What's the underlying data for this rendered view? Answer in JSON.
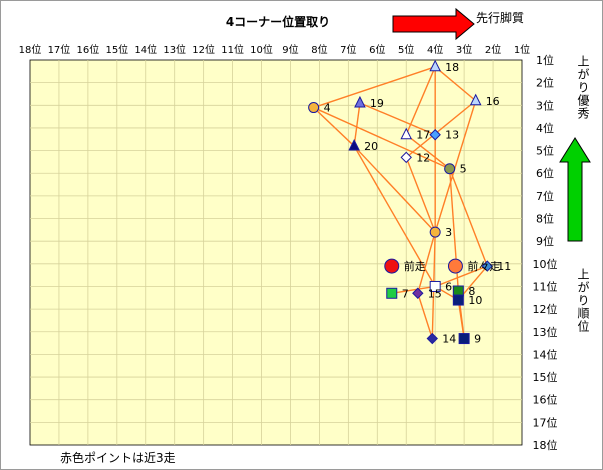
{
  "chart_data": {
    "type": "scatter",
    "title": "4コーナー位置取り",
    "x_tick_labels": [
      "18位",
      "17位",
      "16位",
      "15位",
      "14位",
      "13位",
      "12位",
      "11位",
      "10位",
      "9位",
      "8位",
      "7位",
      "6位",
      "5位",
      "4位",
      "3位",
      "2位",
      "1位"
    ],
    "y_tick_labels": [
      "1位",
      "2位",
      "3位",
      "4位",
      "5位",
      "6位",
      "7位",
      "8位",
      "9位",
      "10位",
      "11位",
      "12位",
      "13位",
      "14位",
      "15位",
      "16位",
      "17位",
      "18位"
    ],
    "xlim": [
      18,
      1
    ],
    "ylim": [
      1,
      18
    ],
    "grid": true,
    "annotations": {
      "front_runner": "先行脚質",
      "closing_speed_rank": "上がり順位",
      "closing_speed_good": "上がり優秀",
      "note": "赤色ポイントは近3走"
    },
    "colors": {
      "plot_bg": "#ffffc8",
      "grid": "#d6d29a",
      "line": "#ff7f27",
      "red_arrow": "#ff0000",
      "green_arrow": "#00d000"
    },
    "horses": [
      {
        "label": "18",
        "marker": "triangle",
        "color": "#bcd6ff",
        "x": 4.0,
        "y": 1.3
      },
      {
        "label": "16",
        "marker": "triangle",
        "color": "#bcd6ff",
        "x": 2.6,
        "y": 2.8
      },
      {
        "label": "19",
        "marker": "triangle",
        "color": "#7070e0",
        "x": 6.6,
        "y": 2.9
      },
      {
        "label": "4",
        "marker": "circle",
        "color": "#f5b43c",
        "x": 8.2,
        "y": 3.1
      },
      {
        "label": "17",
        "marker": "triangle",
        "color": "#ffffff",
        "x": 5.0,
        "y": 4.3
      },
      {
        "label": "13",
        "marker": "diamond",
        "color": "#4aa0ff",
        "x": 4.0,
        "y": 4.3
      },
      {
        "label": "20",
        "marker": "triangle",
        "color": "#0a0a80",
        "x": 6.8,
        "y": 4.8
      },
      {
        "label": "12",
        "marker": "diamond",
        "color": "#ffffff",
        "x": 5.0,
        "y": 5.3
      },
      {
        "label": "5",
        "marker": "circle",
        "color": "#8a9a50",
        "x": 3.5,
        "y": 5.8
      },
      {
        "label": "3",
        "marker": "circle",
        "color": "#f5b43c",
        "x": 4.0,
        "y": 8.6
      },
      {
        "label": "11",
        "marker": "diamond",
        "color": "#3a8ad0",
        "x": 2.2,
        "y": 10.1
      },
      {
        "label": "6",
        "marker": "square",
        "color": "#ffffff",
        "x": 4.0,
        "y": 11.0
      },
      {
        "label": "8",
        "marker": "square",
        "color": "#1a8a1a",
        "x": 3.2,
        "y": 11.2
      },
      {
        "label": "7",
        "marker": "square",
        "color": "#22cc44",
        "x": 5.5,
        "y": 11.3
      },
      {
        "label": "15",
        "marker": "diamond",
        "color": "#7030a0",
        "x": 4.6,
        "y": 11.3
      },
      {
        "label": "10",
        "marker": "square",
        "color": "#0a1f7a",
        "x": 3.2,
        "y": 11.6
      },
      {
        "label": "14",
        "marker": "diamond",
        "color": "#2a2aa0",
        "x": 4.1,
        "y": 13.3
      },
      {
        "label": "9",
        "marker": "square",
        "color": "#0a1f7a",
        "x": 3.0,
        "y": 13.3
      }
    ],
    "previous_run_markers": [
      {
        "label": "前走",
        "marker": "circle",
        "color": "#ee1111",
        "x": 5.5,
        "y": 10.1
      },
      {
        "label": "前々走",
        "marker": "circle",
        "color": "#ff7a3a",
        "x": 3.3,
        "y": 10.1
      }
    ],
    "connections": [
      [
        "18",
        "17"
      ],
      [
        "18",
        "16"
      ],
      [
        "18",
        "13"
      ],
      [
        "18",
        "4"
      ],
      [
        "19",
        "20"
      ],
      [
        "19",
        "13"
      ],
      [
        "4",
        "20"
      ],
      [
        "4",
        "5"
      ],
      [
        "16",
        "12"
      ],
      [
        "16",
        "3"
      ],
      [
        "17",
        "5"
      ],
      [
        "12",
        "3"
      ],
      [
        "20",
        "3"
      ],
      [
        "20",
        "6"
      ],
      [
        "13",
        "3"
      ],
      [
        "5",
        "8"
      ],
      [
        "5",
        "11"
      ],
      [
        "3",
        "15"
      ],
      [
        "3",
        "14"
      ],
      [
        "6",
        "7"
      ],
      [
        "6",
        "11"
      ],
      [
        "11",
        "10"
      ],
      [
        "8",
        "9"
      ],
      [
        "15",
        "14"
      ],
      [
        "10",
        "9"
      ],
      [
        "10",
        "6"
      ]
    ]
  }
}
